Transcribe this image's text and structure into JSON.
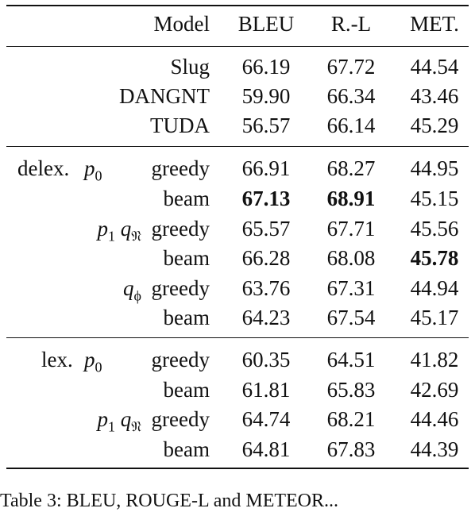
{
  "table": {
    "headers": {
      "model": "Model",
      "bleu": "BLEU",
      "rouge": "R.-L",
      "meteor": "MET."
    },
    "baselines": [
      {
        "model": "Slug",
        "bleu": "66.19",
        "rouge": "67.72",
        "meteor": "44.54"
      },
      {
        "model": "DANGNT",
        "bleu": "59.90",
        "rouge": "66.34",
        "meteor": "43.46"
      },
      {
        "model": "TUDA",
        "bleu": "56.57",
        "rouge": "66.14",
        "meteor": "45.29"
      }
    ],
    "delex": {
      "label": "delex.",
      "rows": [
        {
          "var": "p",
          "sub": "0",
          "decode": "greedy",
          "bleu": "66.91",
          "rouge": "68.27",
          "meteor": "44.95"
        },
        {
          "decode": "beam",
          "bleu": "67.13",
          "rouge": "68.91",
          "meteor": "45.15"
        },
        {
          "var": "p",
          "sub": "1",
          "var2": "q",
          "sub2": "𝔑",
          "decode": "greedy",
          "bleu": "65.57",
          "rouge": "67.71",
          "meteor": "45.56"
        },
        {
          "decode": "beam",
          "bleu": "66.28",
          "rouge": "68.08",
          "meteor": "45.78"
        },
        {
          "var2": "q",
          "sub2": "ϕ",
          "decode": "greedy",
          "bleu": "63.76",
          "rouge": "67.31",
          "meteor": "44.94"
        },
        {
          "decode": "beam",
          "bleu": "64.23",
          "rouge": "67.54",
          "meteor": "45.17"
        }
      ]
    },
    "lex": {
      "label": "lex.",
      "rows": [
        {
          "var": "p",
          "sub": "0",
          "decode": "greedy",
          "bleu": "60.35",
          "rouge": "64.51",
          "meteor": "41.82"
        },
        {
          "decode": "beam",
          "bleu": "61.81",
          "rouge": "65.83",
          "meteor": "42.69"
        },
        {
          "var": "p",
          "sub": "1",
          "var2": "q",
          "sub2": "𝔑",
          "decode": "greedy",
          "bleu": "64.74",
          "rouge": "68.21",
          "meteor": "44.46"
        },
        {
          "decode": "beam",
          "bleu": "64.81",
          "rouge": "67.83",
          "meteor": "44.39"
        }
      ]
    }
  },
  "caption": "Table 3: BLEU, ROUGE-L and METEOR..."
}
